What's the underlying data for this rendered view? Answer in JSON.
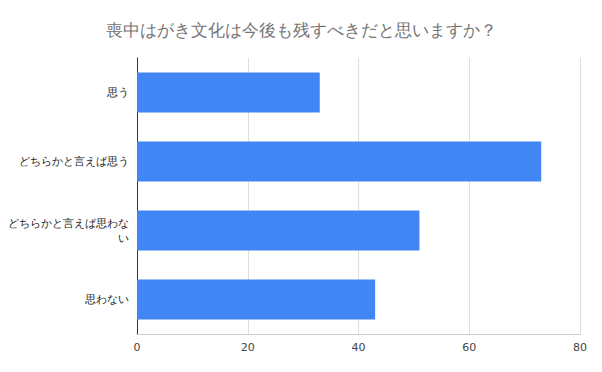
{
  "chart_data": {
    "type": "bar",
    "title": "喪中はがき文化は今後も残すべきだと思いますか？",
    "orientation": "horizontal",
    "categories": [
      "思う",
      "どちらかと言えば思う",
      "どちらかと言えば思わない",
      "思わない"
    ],
    "values": [
      33,
      73,
      51,
      43
    ],
    "color": "#4285f4",
    "xlim": [
      0,
      80
    ],
    "xticks": [
      0,
      20,
      40,
      60,
      80
    ],
    "grid": true
  }
}
